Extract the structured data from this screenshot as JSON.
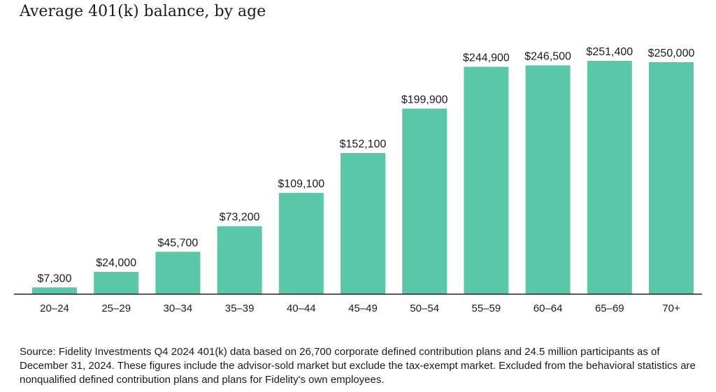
{
  "chart_data": {
    "type": "bar",
    "title": "Average 401(k) balance, by age",
    "xlabel": "",
    "ylabel": "",
    "categories": [
      "20–24",
      "25–29",
      "30–34",
      "35–39",
      "40–44",
      "45–49",
      "50–54",
      "55–59",
      "60–64",
      "65–69",
      "70+"
    ],
    "values": [
      7300,
      24000,
      45700,
      73200,
      109100,
      152100,
      199900,
      244900,
      246500,
      251400,
      250000
    ],
    "data_labels": [
      "$7,300",
      "$24,000",
      "$45,700",
      "$73,200",
      "$109,100",
      "$152,100",
      "$199,900",
      "$244,900",
      "$246,500",
      "$251,400",
      "$250,000"
    ],
    "ylim": [
      0,
      251400
    ],
    "grid": false,
    "legend": "none",
    "bar_color": "#5ac8a8",
    "axis_color": "#222222"
  },
  "footnote": "Source: Fidelity Investments Q4 2024 401(k) data based on 26,700 corporate defined contribution plans and 24.5 million participants as of December 31, 2024. These figures include the advisor-sold market but exclude the tax-exempt market. Excluded from the behavioral statistics are nonqualified defined contribution plans and plans for Fidelity's own employees."
}
